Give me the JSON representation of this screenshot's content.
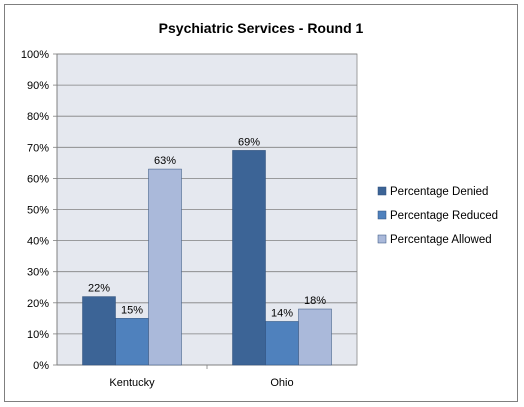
{
  "chart_data": {
    "type": "bar",
    "title": "Psychiatric Services - Round 1",
    "categories": [
      "Kentucky",
      "Ohio"
    ],
    "series": [
      {
        "name": "Percentage Denied",
        "values": [
          22,
          69
        ],
        "labels": [
          "22%",
          "69%"
        ],
        "color": "#3c6496"
      },
      {
        "name": "Percentage Reduced",
        "values": [
          15,
          14
        ],
        "labels": [
          "15%",
          "14%"
        ],
        "color": "#4f81bd"
      },
      {
        "name": "Percentage Allowed",
        "values": [
          63,
          18
        ],
        "labels": [
          "63%",
          "18%"
        ],
        "color": "#aab9da"
      }
    ],
    "ylim": [
      0,
      100
    ],
    "yticks": [
      "0%",
      "10%",
      "20%",
      "30%",
      "40%",
      "50%",
      "60%",
      "70%",
      "80%",
      "90%",
      "100%"
    ],
    "grid": true,
    "plot_background": "#e5e8ef",
    "legend_position": "right"
  }
}
